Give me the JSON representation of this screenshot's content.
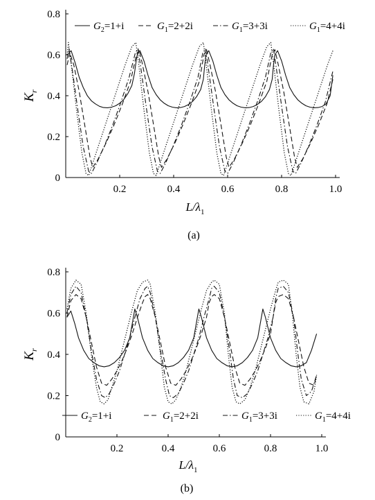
{
  "chart_data": [
    {
      "type": "line",
      "panel_label": "(a)",
      "xlabel": {
        "main": "L/λ",
        "sub": "1"
      },
      "ylabel": {
        "main": "K",
        "sub": "r"
      },
      "xlim": [
        0.0,
        1.0
      ],
      "ylim": [
        0.0,
        0.8
      ],
      "xticks": [
        "0.2",
        "0.4",
        "0.6",
        "0.8",
        "1.0"
      ],
      "yticks": [
        "0",
        "0.2",
        "0.4",
        "0.6",
        "0.8"
      ],
      "legend_position": "top",
      "series": [
        {
          "name": {
            "main": "G",
            "sub": "2",
            "rest": "=1+i"
          },
          "style": "solid",
          "x": [
            0.005,
            0.02,
            0.035,
            0.05,
            0.065,
            0.08,
            0.095,
            0.11,
            0.125,
            0.14,
            0.155,
            0.17,
            0.185,
            0.2,
            0.215,
            0.23,
            0.245,
            0.255,
            0.26,
            0.265,
            0.275,
            0.29,
            0.305,
            0.32,
            0.335,
            0.35,
            0.365,
            0.38,
            0.395,
            0.41,
            0.425,
            0.44,
            0.455,
            0.47,
            0.485,
            0.5,
            0.51,
            0.515,
            0.52,
            0.53,
            0.545,
            0.56,
            0.575,
            0.59,
            0.605,
            0.62,
            0.635,
            0.65,
            0.665,
            0.68,
            0.695,
            0.71,
            0.725,
            0.74,
            0.755,
            0.765,
            0.77,
            0.775,
            0.785,
            0.8,
            0.815,
            0.83,
            0.845,
            0.86,
            0.875,
            0.89,
            0.905,
            0.92,
            0.935,
            0.95,
            0.965,
            0.98,
            0.99
          ],
          "y": [
            0.6,
            0.62,
            0.56,
            0.49,
            0.44,
            0.4,
            0.375,
            0.36,
            0.348,
            0.342,
            0.341,
            0.344,
            0.351,
            0.363,
            0.381,
            0.41,
            0.45,
            0.51,
            0.56,
            0.6,
            0.62,
            0.57,
            0.5,
            0.44,
            0.405,
            0.38,
            0.363,
            0.351,
            0.344,
            0.341,
            0.342,
            0.347,
            0.357,
            0.372,
            0.395,
            0.43,
            0.48,
            0.55,
            0.6,
            0.62,
            0.57,
            0.5,
            0.44,
            0.405,
            0.38,
            0.363,
            0.351,
            0.344,
            0.341,
            0.342,
            0.347,
            0.357,
            0.372,
            0.395,
            0.43,
            0.48,
            0.55,
            0.6,
            0.62,
            0.57,
            0.5,
            0.44,
            0.405,
            0.38,
            0.363,
            0.351,
            0.344,
            0.341,
            0.342,
            0.347,
            0.36,
            0.4,
            0.5
          ]
        },
        {
          "name": {
            "main": "G",
            "sub": "1",
            "rest": "=2+2i"
          },
          "style": "dashed",
          "x": [
            0.005,
            0.015,
            0.03,
            0.05,
            0.07,
            0.09,
            0.1,
            0.12,
            0.15,
            0.18,
            0.21,
            0.24,
            0.262,
            0.272,
            0.285,
            0.305,
            0.325,
            0.345,
            0.355,
            0.375,
            0.405,
            0.435,
            0.465,
            0.495,
            0.512,
            0.522,
            0.535,
            0.555,
            0.575,
            0.595,
            0.605,
            0.625,
            0.655,
            0.685,
            0.715,
            0.745,
            0.765,
            0.775,
            0.788,
            0.808,
            0.828,
            0.848,
            0.858,
            0.878,
            0.908,
            0.938,
            0.968,
            0.99
          ],
          "y": [
            0.55,
            0.61,
            0.55,
            0.42,
            0.26,
            0.1,
            0.05,
            0.09,
            0.17,
            0.26,
            0.36,
            0.47,
            0.6,
            0.625,
            0.55,
            0.42,
            0.26,
            0.1,
            0.05,
            0.09,
            0.17,
            0.26,
            0.36,
            0.47,
            0.6,
            0.625,
            0.55,
            0.42,
            0.26,
            0.1,
            0.05,
            0.09,
            0.17,
            0.26,
            0.36,
            0.47,
            0.6,
            0.625,
            0.55,
            0.42,
            0.26,
            0.1,
            0.05,
            0.09,
            0.17,
            0.26,
            0.36,
            0.48
          ]
        },
        {
          "name": {
            "main": "G",
            "sub": "1",
            "rest": "=3+3i"
          },
          "style": "dashdot",
          "x": [
            0.005,
            0.012,
            0.025,
            0.045,
            0.065,
            0.085,
            0.095,
            0.115,
            0.145,
            0.175,
            0.205,
            0.235,
            0.258,
            0.268,
            0.28,
            0.3,
            0.32,
            0.34,
            0.35,
            0.37,
            0.4,
            0.43,
            0.46,
            0.49,
            0.508,
            0.518,
            0.53,
            0.55,
            0.57,
            0.59,
            0.6,
            0.62,
            0.65,
            0.68,
            0.71,
            0.74,
            0.76,
            0.77,
            0.782,
            0.802,
            0.822,
            0.842,
            0.852,
            0.872,
            0.902,
            0.932,
            0.962,
            0.99
          ],
          "y": [
            0.58,
            0.63,
            0.52,
            0.33,
            0.15,
            0.03,
            0.02,
            0.07,
            0.16,
            0.26,
            0.37,
            0.49,
            0.61,
            0.63,
            0.52,
            0.33,
            0.15,
            0.03,
            0.02,
            0.07,
            0.16,
            0.26,
            0.37,
            0.49,
            0.61,
            0.63,
            0.52,
            0.33,
            0.15,
            0.03,
            0.02,
            0.07,
            0.16,
            0.26,
            0.37,
            0.49,
            0.61,
            0.63,
            0.52,
            0.33,
            0.15,
            0.03,
            0.02,
            0.07,
            0.16,
            0.26,
            0.37,
            0.52
          ]
        },
        {
          "name": {
            "main": "G",
            "sub": "1",
            "rest": "=4+4i"
          },
          "style": "dotted",
          "x": [
            0.005,
            0.01,
            0.02,
            0.04,
            0.06,
            0.075,
            0.085,
            0.1,
            0.13,
            0.16,
            0.19,
            0.22,
            0.245,
            0.26,
            0.27,
            0.29,
            0.31,
            0.325,
            0.335,
            0.35,
            0.38,
            0.41,
            0.44,
            0.47,
            0.495,
            0.51,
            0.52,
            0.54,
            0.56,
            0.575,
            0.585,
            0.6,
            0.63,
            0.66,
            0.69,
            0.72,
            0.745,
            0.76,
            0.77,
            0.79,
            0.81,
            0.825,
            0.835,
            0.85,
            0.88,
            0.91,
            0.94,
            0.97,
            0.99
          ],
          "y": [
            0.6,
            0.66,
            0.56,
            0.33,
            0.12,
            0.02,
            0.01,
            0.07,
            0.19,
            0.31,
            0.43,
            0.55,
            0.64,
            0.66,
            0.56,
            0.33,
            0.12,
            0.02,
            0.01,
            0.07,
            0.19,
            0.31,
            0.43,
            0.55,
            0.64,
            0.66,
            0.56,
            0.33,
            0.12,
            0.02,
            0.01,
            0.07,
            0.19,
            0.31,
            0.43,
            0.55,
            0.64,
            0.66,
            0.56,
            0.33,
            0.12,
            0.02,
            0.01,
            0.07,
            0.19,
            0.31,
            0.43,
            0.55,
            0.62
          ]
        }
      ]
    },
    {
      "type": "line",
      "panel_label": "(b)",
      "xlabel": {
        "main": "L/λ",
        "sub": "1"
      },
      "ylabel": {
        "main": "K",
        "sub": "r"
      },
      "xlim": [
        0.0,
        1.0
      ],
      "ylim": [
        0.0,
        0.8
      ],
      "xticks": [
        "0.2",
        "0.4",
        "0.6",
        "0.8",
        "1.0"
      ],
      "yticks": [
        "0",
        "0.2",
        "0.4",
        "0.6",
        "0.8"
      ],
      "legend_position": "bottom",
      "series": [
        {
          "name": {
            "main": "G",
            "sub": "2",
            "rest": "=1+i"
          },
          "style": "solid",
          "x": [
            0.005,
            0.02,
            0.035,
            0.05,
            0.07,
            0.09,
            0.11,
            0.13,
            0.15,
            0.17,
            0.19,
            0.21,
            0.23,
            0.25,
            0.26,
            0.27,
            0.28,
            0.3,
            0.32,
            0.34,
            0.36,
            0.38,
            0.4,
            0.42,
            0.44,
            0.46,
            0.48,
            0.5,
            0.51,
            0.52,
            0.53,
            0.55,
            0.57,
            0.59,
            0.61,
            0.63,
            0.65,
            0.67,
            0.69,
            0.71,
            0.73,
            0.75,
            0.76,
            0.77,
            0.78,
            0.8,
            0.82,
            0.84,
            0.86,
            0.88,
            0.9,
            0.92,
            0.94,
            0.96,
            0.98
          ],
          "y": [
            0.58,
            0.61,
            0.55,
            0.48,
            0.42,
            0.38,
            0.36,
            0.345,
            0.34,
            0.345,
            0.36,
            0.385,
            0.42,
            0.48,
            0.55,
            0.62,
            0.58,
            0.48,
            0.42,
            0.38,
            0.36,
            0.345,
            0.34,
            0.345,
            0.36,
            0.385,
            0.42,
            0.48,
            0.55,
            0.62,
            0.58,
            0.48,
            0.42,
            0.38,
            0.36,
            0.345,
            0.34,
            0.345,
            0.36,
            0.385,
            0.42,
            0.48,
            0.55,
            0.62,
            0.58,
            0.48,
            0.42,
            0.38,
            0.36,
            0.345,
            0.34,
            0.345,
            0.36,
            0.42,
            0.5
          ]
        },
        {
          "name": {
            "main": "G",
            "sub": "1",
            "rest": "=2+2i"
          },
          "style": "dashed",
          "x": [
            0.005,
            0.02,
            0.04,
            0.06,
            0.08,
            0.1,
            0.12,
            0.14,
            0.16,
            0.18,
            0.2,
            0.22,
            0.24,
            0.26,
            0.28,
            0.3,
            0.31,
            0.32,
            0.33,
            0.35,
            0.37,
            0.39,
            0.41,
            0.43,
            0.45,
            0.47,
            0.49,
            0.51,
            0.53,
            0.55,
            0.56,
            0.57,
            0.58,
            0.6,
            0.62,
            0.64,
            0.66,
            0.68,
            0.7,
            0.72,
            0.74,
            0.76,
            0.78,
            0.8,
            0.81,
            0.82,
            0.83,
            0.85,
            0.87,
            0.89,
            0.91,
            0.93,
            0.95,
            0.97,
            0.98
          ],
          "y": [
            0.58,
            0.66,
            0.69,
            0.67,
            0.58,
            0.46,
            0.34,
            0.26,
            0.25,
            0.28,
            0.32,
            0.37,
            0.43,
            0.5,
            0.58,
            0.65,
            0.68,
            0.69,
            0.67,
            0.58,
            0.46,
            0.34,
            0.26,
            0.25,
            0.28,
            0.32,
            0.37,
            0.43,
            0.5,
            0.58,
            0.65,
            0.68,
            0.69,
            0.67,
            0.58,
            0.46,
            0.34,
            0.26,
            0.25,
            0.28,
            0.32,
            0.37,
            0.43,
            0.5,
            0.58,
            0.65,
            0.68,
            0.69,
            0.67,
            0.58,
            0.46,
            0.34,
            0.26,
            0.25,
            0.3
          ]
        },
        {
          "name": {
            "main": "G",
            "sub": "1",
            "rest": "=3+3i"
          },
          "style": "dashdot",
          "x": [
            0.005,
            0.02,
            0.04,
            0.06,
            0.08,
            0.1,
            0.12,
            0.14,
            0.155,
            0.17,
            0.19,
            0.21,
            0.23,
            0.25,
            0.27,
            0.29,
            0.31,
            0.32,
            0.33,
            0.35,
            0.37,
            0.39,
            0.405,
            0.42,
            0.44,
            0.46,
            0.48,
            0.5,
            0.52,
            0.54,
            0.56,
            0.57,
            0.58,
            0.6,
            0.62,
            0.64,
            0.655,
            0.67,
            0.69,
            0.71,
            0.73,
            0.75,
            0.77,
            0.79,
            0.81,
            0.82,
            0.83,
            0.85,
            0.87,
            0.89,
            0.905,
            0.92,
            0.94,
            0.96,
            0.98
          ],
          "y": [
            0.6,
            0.69,
            0.73,
            0.7,
            0.58,
            0.42,
            0.28,
            0.2,
            0.19,
            0.21,
            0.26,
            0.32,
            0.4,
            0.48,
            0.58,
            0.67,
            0.72,
            0.73,
            0.7,
            0.58,
            0.42,
            0.28,
            0.2,
            0.19,
            0.21,
            0.26,
            0.32,
            0.4,
            0.48,
            0.58,
            0.67,
            0.72,
            0.73,
            0.7,
            0.58,
            0.42,
            0.28,
            0.2,
            0.19,
            0.21,
            0.26,
            0.32,
            0.4,
            0.48,
            0.58,
            0.67,
            0.72,
            0.73,
            0.7,
            0.58,
            0.42,
            0.28,
            0.2,
            0.22,
            0.3
          ]
        },
        {
          "name": {
            "main": "G",
            "sub": "1",
            "rest": "=4+4i"
          },
          "style": "dotted",
          "x": [
            0.005,
            0.02,
            0.04,
            0.06,
            0.08,
            0.1,
            0.12,
            0.135,
            0.15,
            0.165,
            0.18,
            0.2,
            0.22,
            0.24,
            0.26,
            0.28,
            0.3,
            0.32,
            0.33,
            0.35,
            0.37,
            0.385,
            0.4,
            0.415,
            0.43,
            0.45,
            0.47,
            0.49,
            0.51,
            0.53,
            0.55,
            0.57,
            0.58,
            0.6,
            0.62,
            0.635,
            0.65,
            0.665,
            0.68,
            0.7,
            0.72,
            0.74,
            0.76,
            0.78,
            0.8,
            0.82,
            0.83,
            0.85,
            0.87,
            0.885,
            0.9,
            0.915,
            0.93,
            0.95,
            0.97,
            0.98
          ],
          "y": [
            0.62,
            0.72,
            0.76,
            0.74,
            0.6,
            0.4,
            0.24,
            0.17,
            0.16,
            0.18,
            0.24,
            0.32,
            0.42,
            0.52,
            0.62,
            0.71,
            0.75,
            0.76,
            0.74,
            0.6,
            0.4,
            0.24,
            0.17,
            0.16,
            0.18,
            0.24,
            0.32,
            0.42,
            0.52,
            0.62,
            0.71,
            0.75,
            0.76,
            0.74,
            0.6,
            0.4,
            0.24,
            0.17,
            0.16,
            0.18,
            0.24,
            0.32,
            0.42,
            0.52,
            0.62,
            0.71,
            0.75,
            0.76,
            0.74,
            0.6,
            0.4,
            0.24,
            0.17,
            0.16,
            0.22,
            0.3
          ]
        }
      ]
    }
  ]
}
